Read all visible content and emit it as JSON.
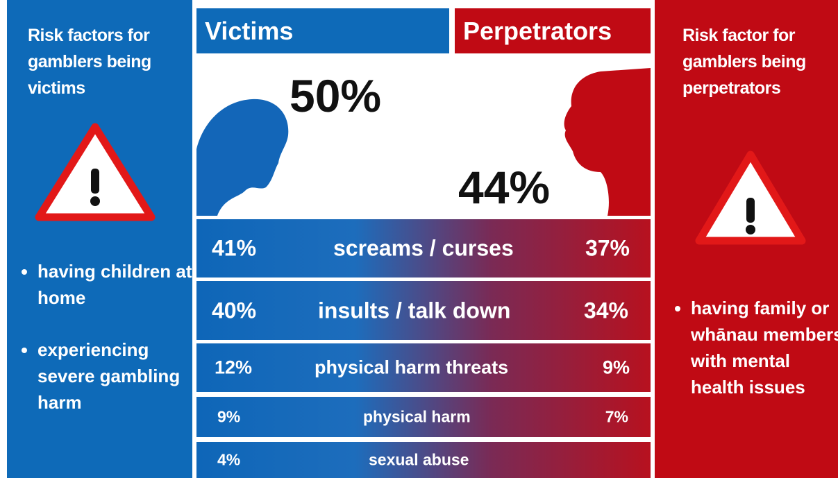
{
  "left_panel": {
    "title": "Risk factors for gamblers being victims",
    "bullets": [
      "having children at home",
      "experiencing severe gambling harm"
    ]
  },
  "victims": {
    "header": "Victims",
    "total": "50%"
  },
  "perpetrators": {
    "header": "Perpetrators",
    "total": "44%"
  },
  "rows": [
    {
      "victims": "41%",
      "label": "screams / curses",
      "perpetrators": "37%"
    },
    {
      "victims": "40%",
      "label": "insults / talk down",
      "perpetrators": "34%"
    },
    {
      "victims": "12%",
      "label": "physical harm threats",
      "perpetrators": "9%"
    },
    {
      "victims": "9%",
      "label": "physical harm",
      "perpetrators": "7%"
    },
    {
      "victims": "4%",
      "label": "sexual abuse"
    }
  ],
  "right_panel": {
    "title": "Risk factor for gamblers being perpetrators",
    "bullets": [
      "having family or whānau members with mental health issues"
    ]
  }
}
